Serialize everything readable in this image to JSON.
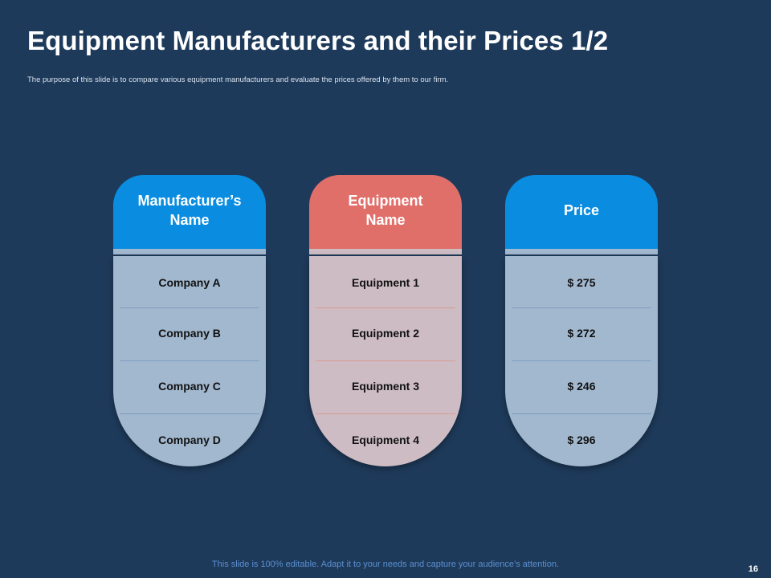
{
  "title": "Equipment Manufacturers and their Prices 1/2",
  "subtitle": "The purpose of this slide is to compare various equipment manufacturers and evaluate the prices offered by them to our firm.",
  "columns": [
    {
      "header_line1": "Manufacturer’s",
      "header_line2": "Name",
      "rows": [
        "Company A",
        "Company B",
        "Company C",
        "Company D"
      ],
      "color": "#0a8de0",
      "body_color": "#a2b8cf"
    },
    {
      "header_line1": "Equipment",
      "header_line2": "Name",
      "rows": [
        "Equipment 1",
        "Equipment 2",
        "Equipment 3",
        "Equipment 4"
      ],
      "color": "#e06f6a",
      "body_color": "#cdbcc3"
    },
    {
      "header_line1": "Price",
      "header_line2": "",
      "rows": [
        "$ 275",
        "$ 272",
        "$ 246",
        "$ 296"
      ],
      "color": "#0a8de0",
      "body_color": "#a2b8cf"
    }
  ],
  "footer": "This slide is 100% editable. Adapt it to your needs and capture your audience’s attention.",
  "page_number": "16"
}
